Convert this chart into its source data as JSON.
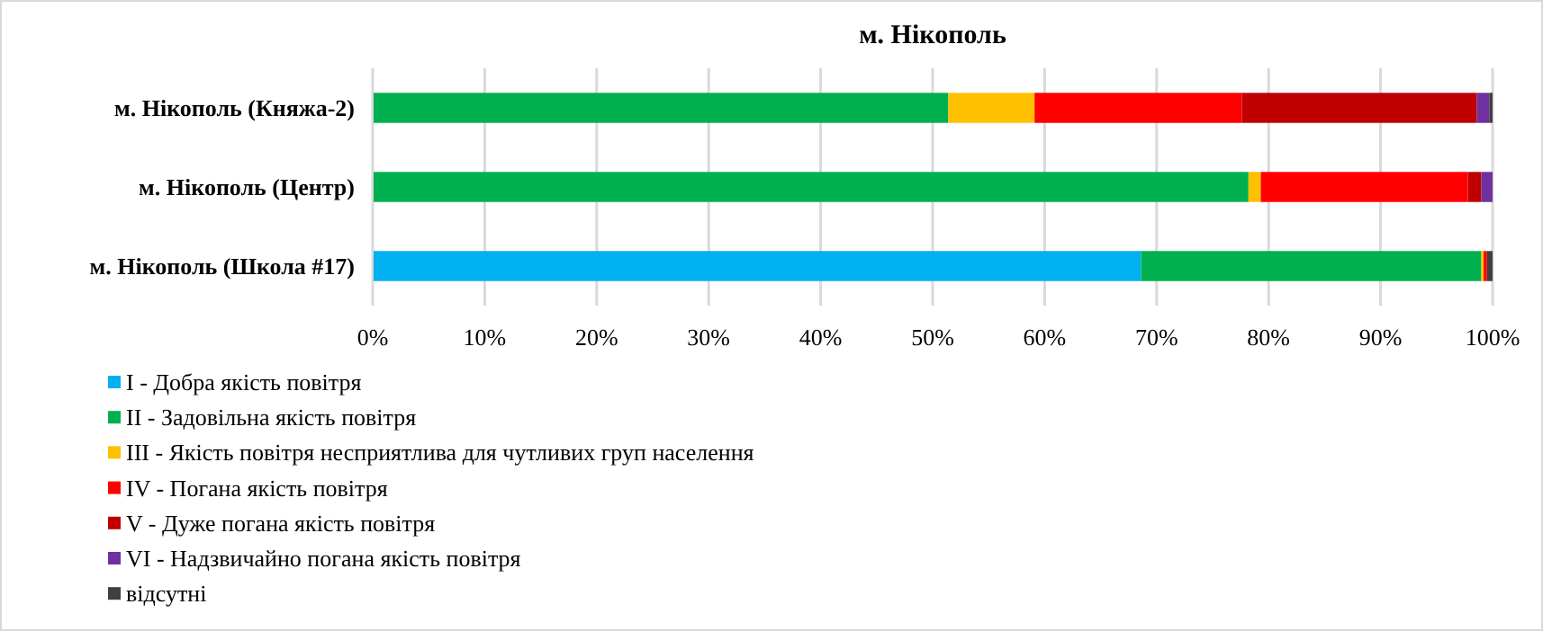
{
  "chart_data": {
    "type": "bar",
    "orientation": "horizontal",
    "stacked": true,
    "title": "м. Нікополь",
    "categories": [
      "м. Нікополь (Княжа-2)",
      "м. Нікополь (Центр)",
      "м. Нікополь (Школа #17)"
    ],
    "series": [
      {
        "name": "I - Добра якість  повітря",
        "color": "#00b0f0",
        "values": [
          0,
          0,
          68.6
        ]
      },
      {
        "name": "II - Задовільна якість  повітря",
        "color": "#00b050",
        "values": [
          51.4,
          78.2,
          30.4
        ]
      },
      {
        "name": "III - Якість повітря несприятлива для чутливих груп населення",
        "color": "#ffc000",
        "values": [
          7.7,
          1.1,
          0.2
        ]
      },
      {
        "name": "IV - Погана якість  повітря",
        "color": "#ff0000",
        "values": [
          18.5,
          18.5,
          0.3
        ]
      },
      {
        "name": "V - Дуже погана якість  повітря",
        "color": "#c00000",
        "values": [
          21.0,
          1.2,
          0
        ]
      },
      {
        "name": "VI - Надзвичайно погана якість  повітря",
        "color": "#7030a0",
        "values": [
          1.1,
          1.0,
          0
        ]
      },
      {
        "name": "відсутні",
        "color": "#404040",
        "values": [
          0.3,
          0,
          0.5
        ]
      }
    ],
    "xlim": [
      0,
      100
    ],
    "xticks": [
      {
        "value": 0,
        "label": "0%"
      },
      {
        "value": 10,
        "label": "10%"
      },
      {
        "value": 20,
        "label": "20%"
      },
      {
        "value": 30,
        "label": "30%"
      },
      {
        "value": 40,
        "label": "40%"
      },
      {
        "value": 50,
        "label": "50%"
      },
      {
        "value": 60,
        "label": "60%"
      },
      {
        "value": 70,
        "label": "70%"
      },
      {
        "value": 80,
        "label": "80%"
      },
      {
        "value": 90,
        "label": "90%"
      },
      {
        "value": 100,
        "label": "100%"
      }
    ],
    "grid": "x",
    "legend": "bottom"
  }
}
